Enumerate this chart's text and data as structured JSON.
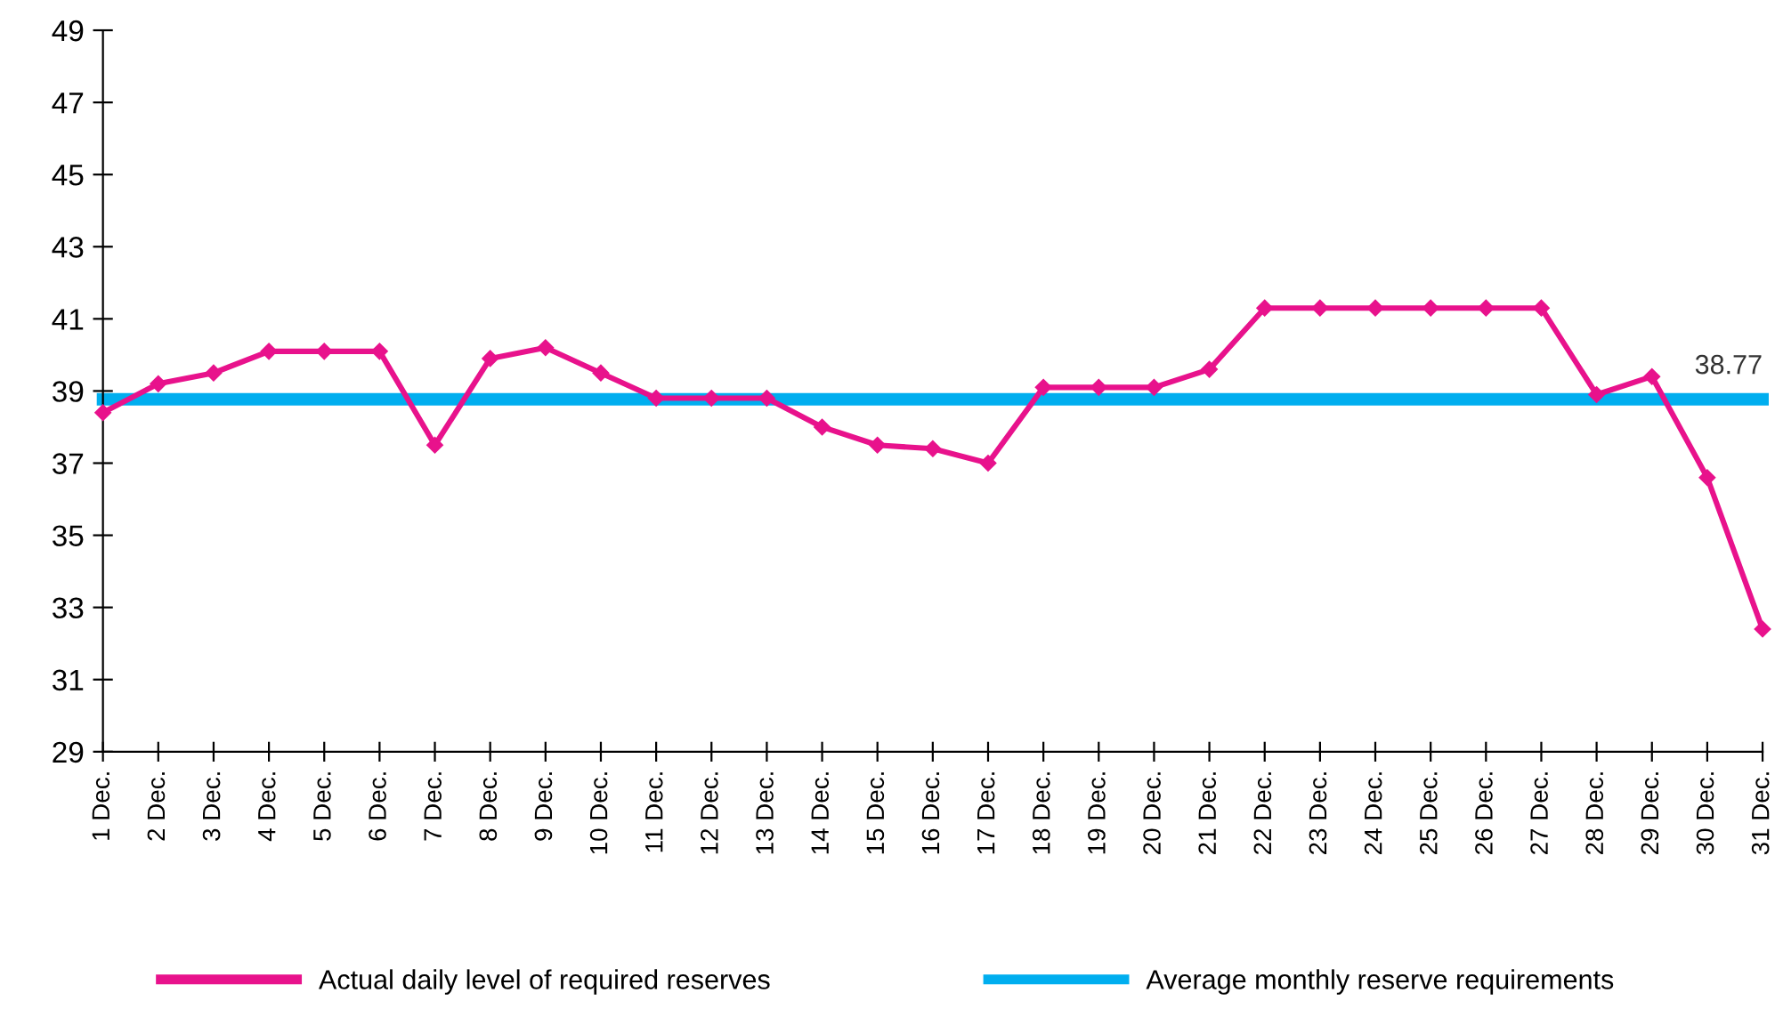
{
  "chart_data": {
    "type": "line",
    "categories": [
      "1 Dec.",
      "2 Dec.",
      "3 Dec.",
      "4 Dec.",
      "5 Dec.",
      "6 Dec.",
      "7 Dec.",
      "8 Dec.",
      "9 Dec.",
      "10 Dec.",
      "11 Dec.",
      "12 Dec.",
      "13 Dec.",
      "14 Dec.",
      "15 Dec.",
      "16 Dec.",
      "17 Dec.",
      "18 Dec.",
      "19 Dec.",
      "20 Dec.",
      "21 Dec.",
      "22 Dec.",
      "23 Dec.",
      "24 Dec.",
      "25 Dec.",
      "26 Dec.",
      "27 Dec.",
      "28 Dec.",
      "29 Dec.",
      "30 Dec.",
      "31 Dec."
    ],
    "series": [
      {
        "name": "Actual daily level of required reserves",
        "color": "#e8128c",
        "marker": "diamond",
        "values": [
          38.4,
          39.2,
          39.5,
          40.1,
          40.1,
          40.1,
          37.5,
          39.9,
          40.2,
          39.5,
          38.8,
          38.8,
          38.8,
          38.0,
          37.5,
          37.4,
          37.0,
          39.1,
          39.1,
          39.1,
          39.6,
          41.3,
          41.3,
          41.3,
          41.3,
          41.3,
          41.3,
          38.9,
          39.4,
          36.6,
          32.4
        ]
      },
      {
        "name": "Average monthly reserve requirements",
        "color": "#00aeef",
        "marker": "none",
        "values": [
          38.77,
          38.77,
          38.77,
          38.77,
          38.77,
          38.77,
          38.77,
          38.77,
          38.77,
          38.77,
          38.77,
          38.77,
          38.77,
          38.77,
          38.77,
          38.77,
          38.77,
          38.77,
          38.77,
          38.77,
          38.77,
          38.77,
          38.77,
          38.77,
          38.77,
          38.77,
          38.77,
          38.77,
          38.77,
          38.77,
          38.77
        ],
        "value_labels": [
          null,
          null,
          null,
          null,
          null,
          null,
          null,
          null,
          null,
          null,
          null,
          null,
          null,
          null,
          null,
          null,
          null,
          null,
          null,
          null,
          null,
          null,
          null,
          null,
          null,
          null,
          null,
          null,
          null,
          null,
          "38.77"
        ]
      }
    ],
    "ylim": [
      29,
      49
    ],
    "yticks": [
      29,
      31,
      33,
      35,
      37,
      39,
      41,
      43,
      45,
      47,
      49
    ],
    "grid": false,
    "legend": "bottom"
  }
}
